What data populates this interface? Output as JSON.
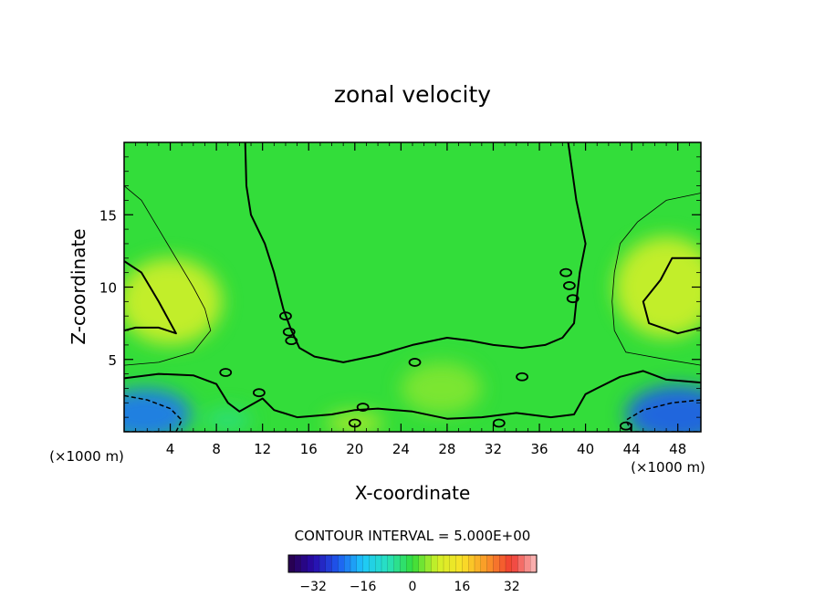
{
  "chart_data": {
    "type": "heatmap",
    "title": "zonal velocity",
    "xlabel": "X-coordinate",
    "ylabel": "Z-coordinate",
    "x_unit_left": "(×1000 m)",
    "x_unit_right": "(×1000 m)",
    "xlim": [
      0,
      50
    ],
    "ylim": [
      0,
      20
    ],
    "x_ticks": [
      4,
      8,
      12,
      16,
      20,
      24,
      28,
      32,
      36,
      40,
      44,
      48
    ],
    "y_ticks": [
      5,
      10,
      15
    ],
    "contour_interval_label": "CONTOUR INTERVAL = 5.000E+00",
    "colorbar": {
      "range": [
        -40,
        40
      ],
      "ticks": [
        -32,
        -16,
        0,
        16,
        32
      ]
    },
    "base_color": "#33dd3a",
    "zero_contour_left": [
      [
        10.5,
        20
      ],
      [
        10.6,
        17
      ],
      [
        11,
        15
      ],
      [
        12.2,
        13
      ],
      [
        13,
        11
      ],
      [
        13.8,
        8.5
      ],
      [
        14.5,
        7
      ],
      [
        15.2,
        5.8
      ],
      [
        16.5,
        5.2
      ],
      [
        19,
        4.8
      ],
      [
        22,
        5.3
      ],
      [
        25,
        6
      ],
      [
        28,
        6.5
      ],
      [
        30,
        6.3
      ],
      [
        32,
        6
      ],
      [
        34.5,
        5.8
      ],
      [
        36.5,
        6
      ],
      [
        38,
        6.5
      ],
      [
        39,
        7.5
      ],
      [
        39.2,
        9
      ],
      [
        39.5,
        11
      ],
      [
        40,
        13
      ],
      [
        39.2,
        16
      ],
      [
        38.5,
        20
      ]
    ],
    "zero_contour_left_wedge": [
      [
        0,
        11.8
      ],
      [
        1.5,
        11
      ],
      [
        3,
        9
      ],
      [
        4.5,
        6.8
      ],
      [
        3,
        7.2
      ],
      [
        1,
        7.2
      ],
      [
        0,
        7
      ]
    ],
    "zero_contour_right_wedge": [
      [
        50,
        7.2
      ],
      [
        48,
        6.8
      ],
      [
        45.5,
        7.5
      ],
      [
        45,
        9
      ],
      [
        46.5,
        10.5
      ],
      [
        47.5,
        12
      ],
      [
        50,
        12
      ]
    ],
    "thin_contour_left": [
      [
        0,
        17
      ],
      [
        1.5,
        16
      ],
      [
        3,
        14
      ],
      [
        4.5,
        12
      ],
      [
        6,
        10
      ],
      [
        7,
        8.5
      ],
      [
        7.5,
        7
      ],
      [
        6,
        5.5
      ],
      [
        3,
        4.8
      ],
      [
        0,
        4.6
      ]
    ],
    "thin_contour_right": [
      [
        50,
        4.6
      ],
      [
        47,
        5
      ],
      [
        43.5,
        5.5
      ],
      [
        42.5,
        7
      ],
      [
        42.3,
        9
      ],
      [
        42.5,
        11
      ],
      [
        43,
        13
      ],
      [
        44.5,
        14.5
      ],
      [
        47,
        16
      ],
      [
        50,
        16.5
      ]
    ],
    "bottom_contour": [
      [
        0,
        3.7
      ],
      [
        3,
        4
      ],
      [
        6,
        3.9
      ],
      [
        8,
        3.3
      ],
      [
        9,
        2
      ],
      [
        10,
        1.4
      ],
      [
        12,
        2.3
      ],
      [
        13,
        1.5
      ],
      [
        15,
        1
      ],
      [
        18,
        1.2
      ],
      [
        20,
        1.5
      ],
      [
        22,
        1.6
      ],
      [
        25,
        1.4
      ],
      [
        28,
        0.9
      ],
      [
        31,
        1
      ],
      [
        34,
        1.3
      ],
      [
        37,
        1
      ],
      [
        39,
        1.2
      ],
      [
        40,
        2.6
      ],
      [
        41,
        3
      ],
      [
        43,
        3.8
      ],
      [
        45,
        4.2
      ],
      [
        47,
        3.6
      ],
      [
        50,
        3.4
      ]
    ],
    "dashed_contour_left": [
      [
        0,
        2.5
      ],
      [
        2,
        2.2
      ],
      [
        4,
        1.6
      ],
      [
        5,
        0.8
      ],
      [
        4.5,
        0
      ],
      [
        0,
        0
      ]
    ],
    "dashed_contour_right": [
      [
        50,
        2.2
      ],
      [
        47.5,
        2
      ],
      [
        45,
        1.5
      ],
      [
        43.5,
        0.8
      ],
      [
        44,
        0
      ],
      [
        50,
        0
      ]
    ],
    "closed_zero_loops": [
      [
        14,
        8
      ],
      [
        14.3,
        6.9
      ],
      [
        14.5,
        6.3
      ],
      [
        38.3,
        11
      ],
      [
        38.6,
        10.1
      ],
      [
        38.9,
        9.2
      ],
      [
        25.2,
        4.8
      ],
      [
        20.7,
        1.7
      ],
      [
        11.7,
        2.7
      ],
      [
        20,
        0.6
      ],
      [
        34.5,
        3.8
      ],
      [
        32.5,
        0.6
      ],
      [
        43.5,
        0.4
      ],
      [
        8.8,
        4.1
      ]
    ],
    "warm_patches": [
      {
        "x": 4,
        "y": 9,
        "rx": 4.5,
        "ry": 3,
        "value": 8
      },
      {
        "x": 47,
        "y": 10,
        "rx": 4.5,
        "ry": 3.5,
        "value": 8
      },
      {
        "x": 27.5,
        "y": 3,
        "rx": 3.5,
        "ry": 1.8,
        "value": 4
      },
      {
        "x": 20,
        "y": 0.6,
        "rx": 2.5,
        "ry": 0.8,
        "value": 6
      }
    ],
    "cold_patches": [
      {
        "x": 1.8,
        "y": 1.2,
        "rx": 4,
        "ry": 1.8,
        "value": -22
      },
      {
        "x": 48,
        "y": 1.2,
        "rx": 4.5,
        "ry": 2,
        "value": -24
      },
      {
        "x": 9,
        "y": 0.8,
        "rx": 2,
        "ry": 0.8,
        "value": -4
      }
    ]
  }
}
